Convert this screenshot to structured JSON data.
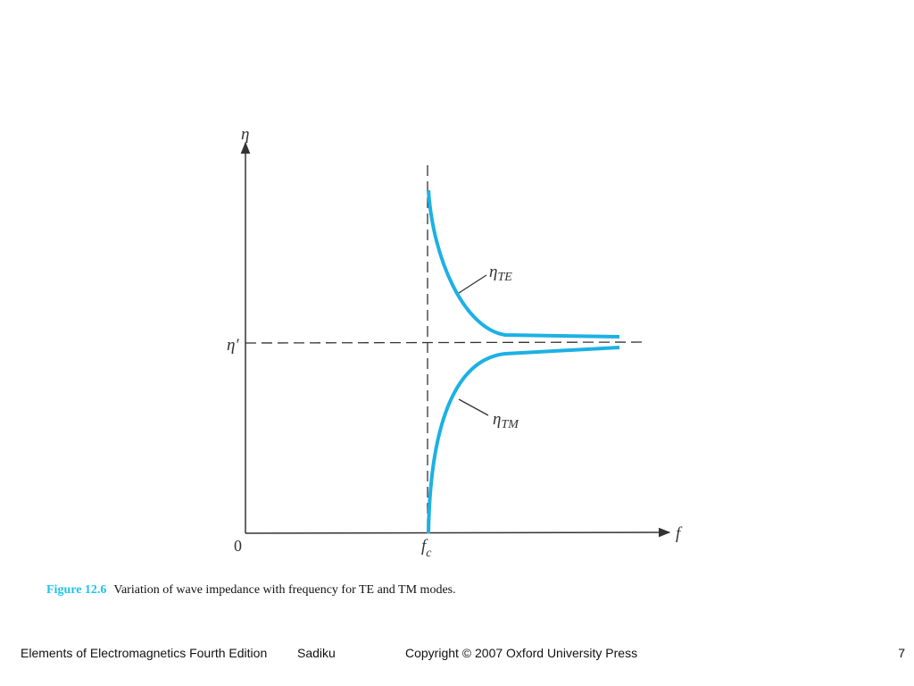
{
  "figure": {
    "y_axis_label": "η",
    "x_axis_label": "f",
    "origin_label": "0",
    "asymptote_label": "η′",
    "cutoff_label": {
      "symbol": "f",
      "subscript": "c"
    },
    "te_curve_label": {
      "symbol": "η",
      "subscript": "TE"
    },
    "tm_curve_label": {
      "symbol": "η",
      "subscript": "TM"
    }
  },
  "caption": {
    "number": "Figure 12.6",
    "text": "Variation of wave impedance with frequency for TE and TM modes."
  },
  "footer": {
    "book": "Elements of Electromagnetics Fourth Edition",
    "author": "Sadiku",
    "copyright": "Copyright © 2007 Oxford University Press",
    "page": "7"
  }
}
